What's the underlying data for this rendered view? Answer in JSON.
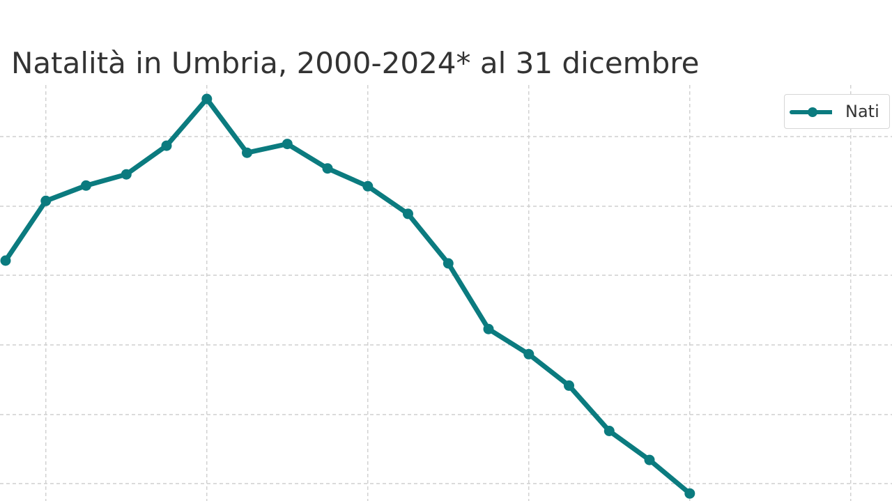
{
  "chart_data": {
    "type": "line",
    "title": "Natalità in Umbria, 2000-2024* al 31 dicembre",
    "xlabel": "",
    "ylabel": "",
    "color": "#0b7b7f",
    "grid": true,
    "legend_position": "top-right",
    "series": [
      {
        "name": "Nati",
        "x": [
          2000,
          2001,
          2002,
          2003,
          2004,
          2005,
          2006,
          2007,
          2008,
          2009,
          2010,
          2011,
          2012,
          2013,
          2014,
          2015,
          2016,
          2017
        ],
        "values": [
          40.1,
          57.2,
          61.6,
          64.8,
          73.0,
          86.4,
          71.0,
          73.5,
          66.5,
          61.4,
          53.5,
          39.3,
          20.5,
          13.3,
          4.3,
          -8.7,
          -17.0,
          -26.6
        ]
      }
    ],
    "xlim": [
      2000,
      2022
    ],
    "ylim": [
      -32,
      92
    ]
  }
}
